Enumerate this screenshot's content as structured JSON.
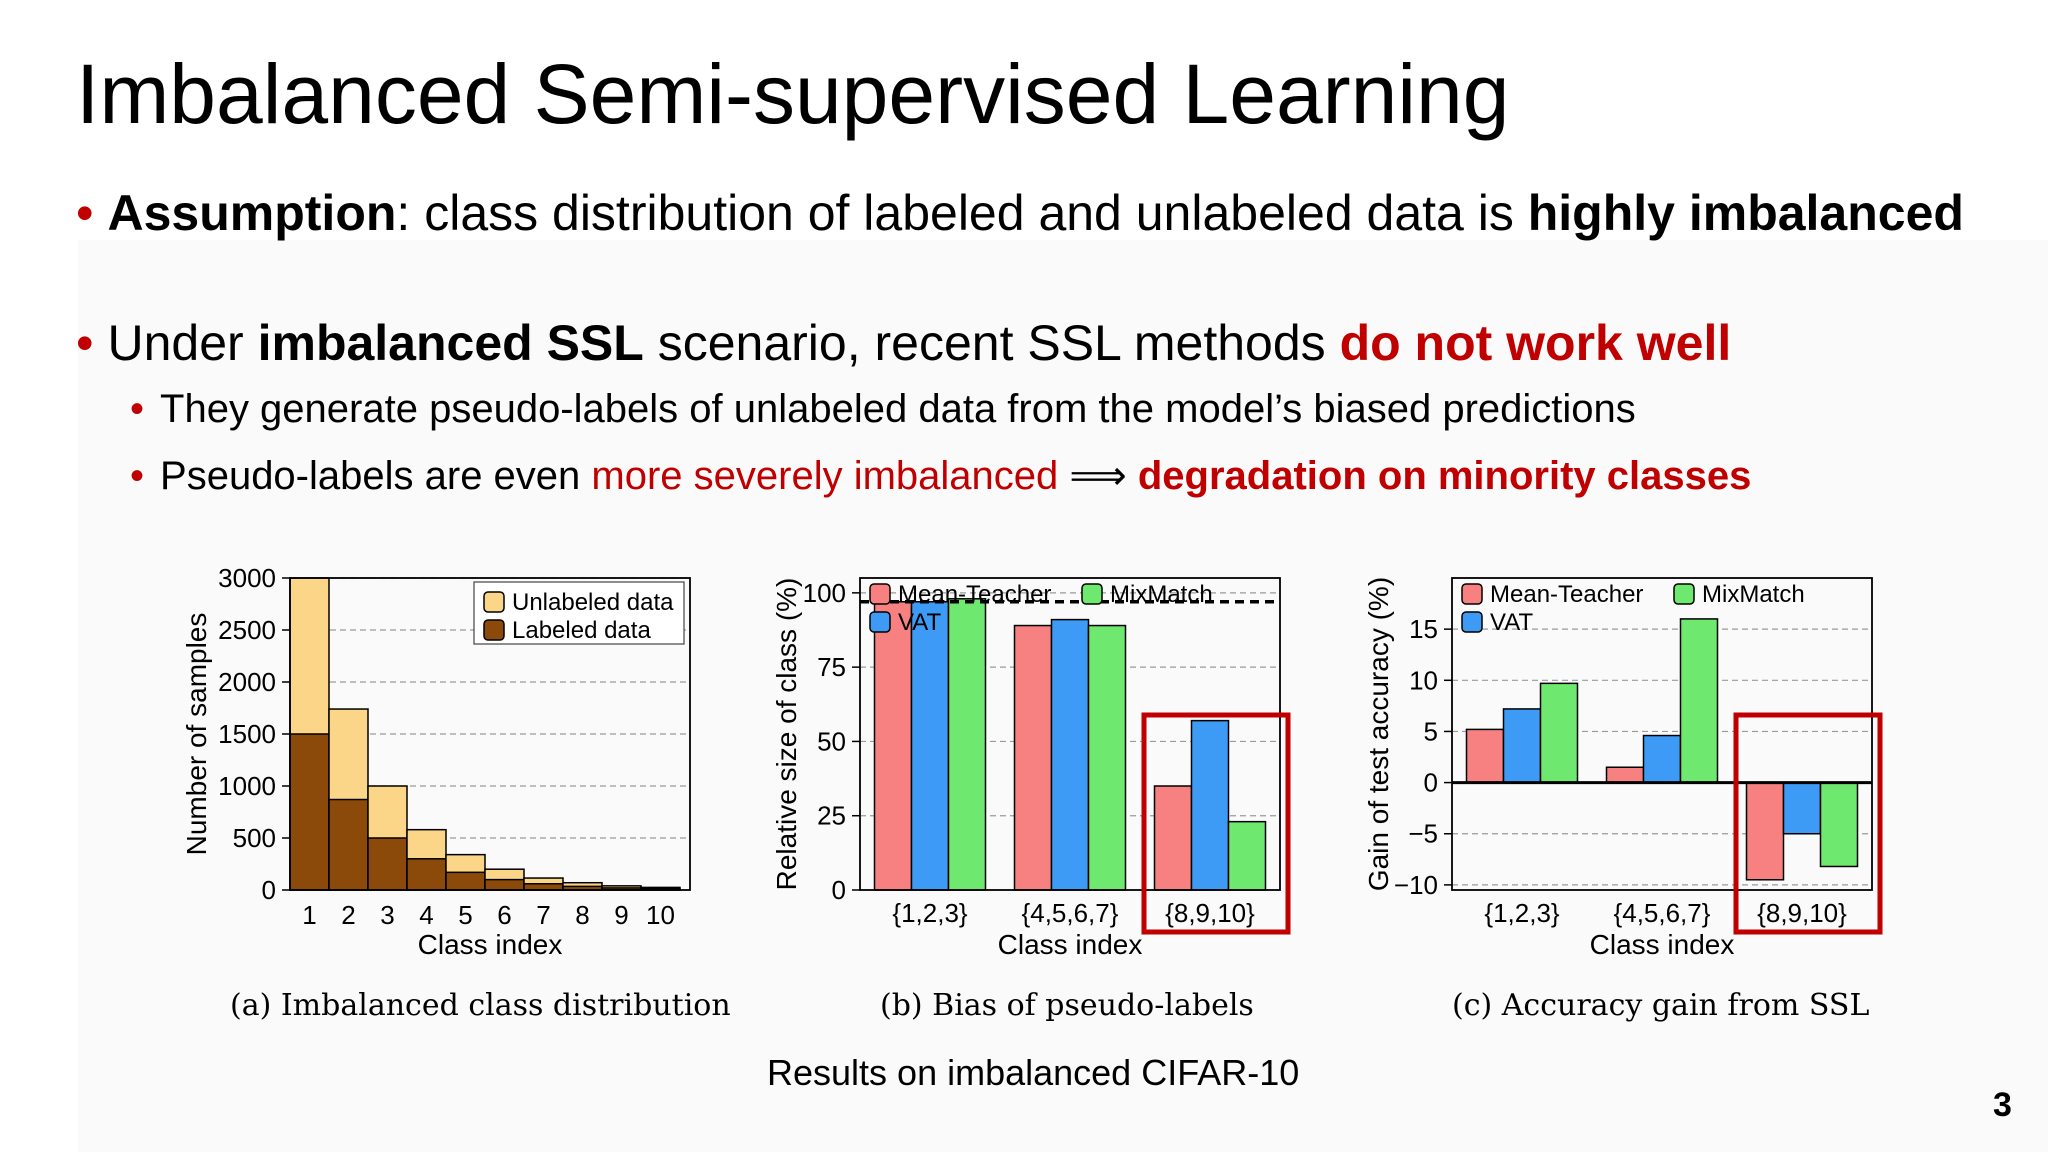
{
  "slide": {
    "title": "Imbalanced Semi-supervised Learning",
    "bullet1": {
      "bold1": "Assumption",
      "text1": ": class distribution of labeled and unlabeled data is ",
      "bold2": "highly imbalanced"
    },
    "bullet2": {
      "text1": "Under ",
      "bold1": "imbalanced SSL",
      "text2": " scenario, recent SSL methods ",
      "red_bold": "do not work well"
    },
    "sub1": {
      "text": "They generate pseudo-labels of unlabeled data from the model’s biased predictions"
    },
    "sub2": {
      "text1": "Pseudo-labels are even ",
      "red": "more severely imbalanced",
      "arrow": " ⟹ ",
      "red_bold": "degradation on minority classes"
    },
    "footer": "Results on imbalanced CIFAR-10",
    "page_number": "3",
    "colors": {
      "red": "#c00000"
    }
  },
  "chart_data": [
    {
      "type": "bar",
      "caption": "(a)  Imbalanced class distribution",
      "xlabel": "Class index",
      "ylabel": "Number of samples",
      "categories": [
        "1",
        "2",
        "3",
        "4",
        "5",
        "6",
        "7",
        "8",
        "9",
        "10"
      ],
      "yticks": [
        "0",
        "500",
        "1000",
        "1500",
        "2000",
        "2500",
        "3000"
      ],
      "ylim": [
        0,
        3000
      ],
      "grid": true,
      "legend": "top-right",
      "series": [
        {
          "name": "Labeled data",
          "color": "#8b4a0a",
          "values": [
            1500,
            870,
            500,
            300,
            170,
            100,
            60,
            35,
            20,
            12
          ]
        },
        {
          "name": "Unlabeled data",
          "color": "#fcd688",
          "values": [
            3000,
            1740,
            1000,
            580,
            340,
            200,
            115,
            70,
            40,
            25
          ]
        }
      ]
    },
    {
      "type": "bar",
      "caption": "(b)  Bias of pseudo-labels",
      "xlabel": "Class index",
      "ylabel": "Relative size of class (%)",
      "categories": [
        "{1,2,3}",
        "{4,5,6,7}",
        "{8,9,10}"
      ],
      "yticks": [
        "0",
        "25",
        "50",
        "75",
        "100"
      ],
      "ylim": [
        0,
        105
      ],
      "grid": true,
      "legend": "top",
      "reference_line": 97,
      "highlight_category": "{8,9,10}",
      "series": [
        {
          "name": "Mean-Teacher",
          "color": "#f78080",
          "values": [
            97,
            89,
            35
          ]
        },
        {
          "name": "VAT",
          "color": "#3d9bf5",
          "values": [
            97,
            91,
            57
          ]
        },
        {
          "name": "MixMatch",
          "color": "#6ee86e",
          "values": [
            98,
            89,
            23
          ]
        }
      ]
    },
    {
      "type": "bar",
      "caption": "(c)  Accuracy gain from SSL",
      "xlabel": "Class index",
      "ylabel": "Gain of test accuracy (%)",
      "categories": [
        "{1,2,3}",
        "{4,5,6,7}",
        "{8,9,10}"
      ],
      "yticks": [
        "−10",
        "−5",
        "0",
        "5",
        "10",
        "15"
      ],
      "ylim": [
        -10.5,
        20
      ],
      "grid": true,
      "legend": "top",
      "highlight_category": "{8,9,10}",
      "series": [
        {
          "name": "Mean-Teacher",
          "color": "#f78080",
          "values": [
            5.2,
            1.5,
            -9.5
          ]
        },
        {
          "name": "VAT",
          "color": "#3d9bf5",
          "values": [
            7.2,
            4.6,
            -5.0
          ]
        },
        {
          "name": "MixMatch",
          "color": "#6ee86e",
          "values": [
            9.7,
            16.0,
            -8.2
          ]
        }
      ]
    }
  ]
}
